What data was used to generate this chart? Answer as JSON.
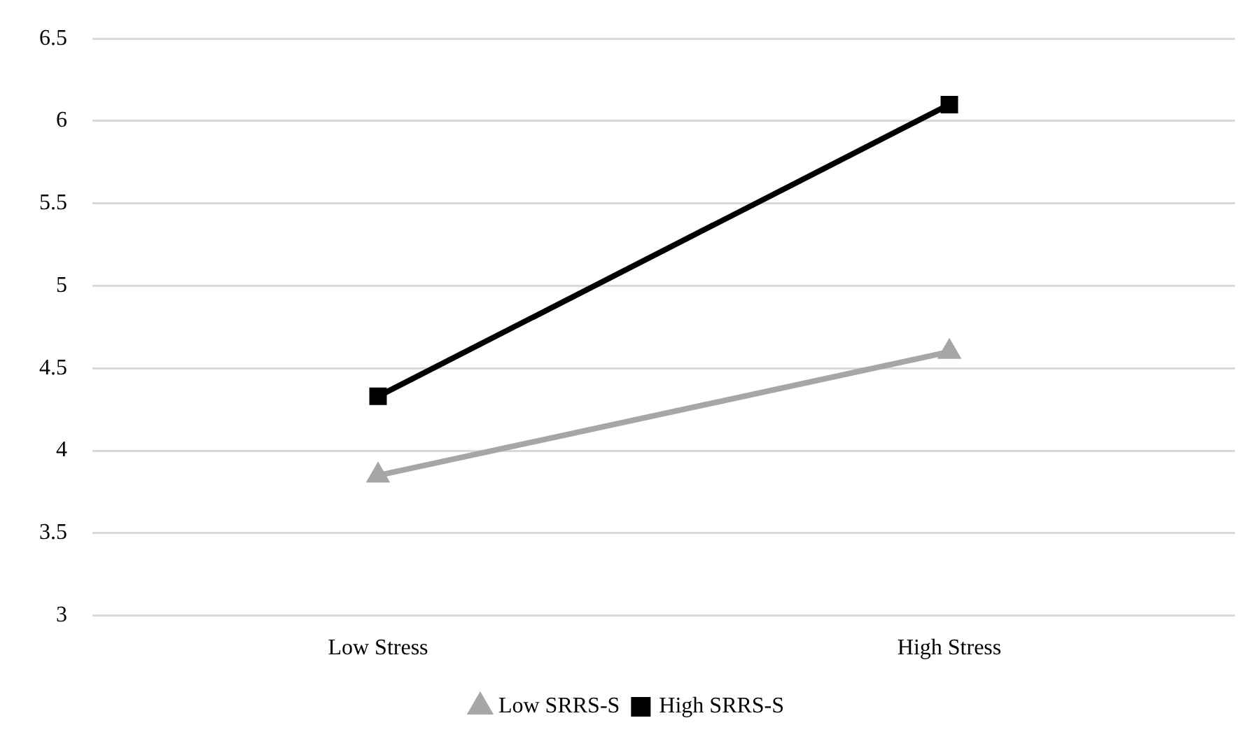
{
  "chart_data": {
    "type": "line",
    "categories": [
      "Low Stress",
      "High Stress"
    ],
    "series": [
      {
        "name": "Low SRRS-S",
        "color": "#a6a6a6",
        "values": [
          3.85,
          4.6
        ],
        "marker": "triangle"
      },
      {
        "name": "High SRRS-S",
        "color": "#000000",
        "values": [
          4.33,
          6.1
        ],
        "marker": "square"
      }
    ],
    "ylim": [
      3,
      6.5
    ],
    "yticks": [
      3,
      3.5,
      4,
      4.5,
      5,
      5.5,
      6,
      6.5
    ],
    "grid": "y",
    "legend": "bottom",
    "line_style": "solid"
  }
}
